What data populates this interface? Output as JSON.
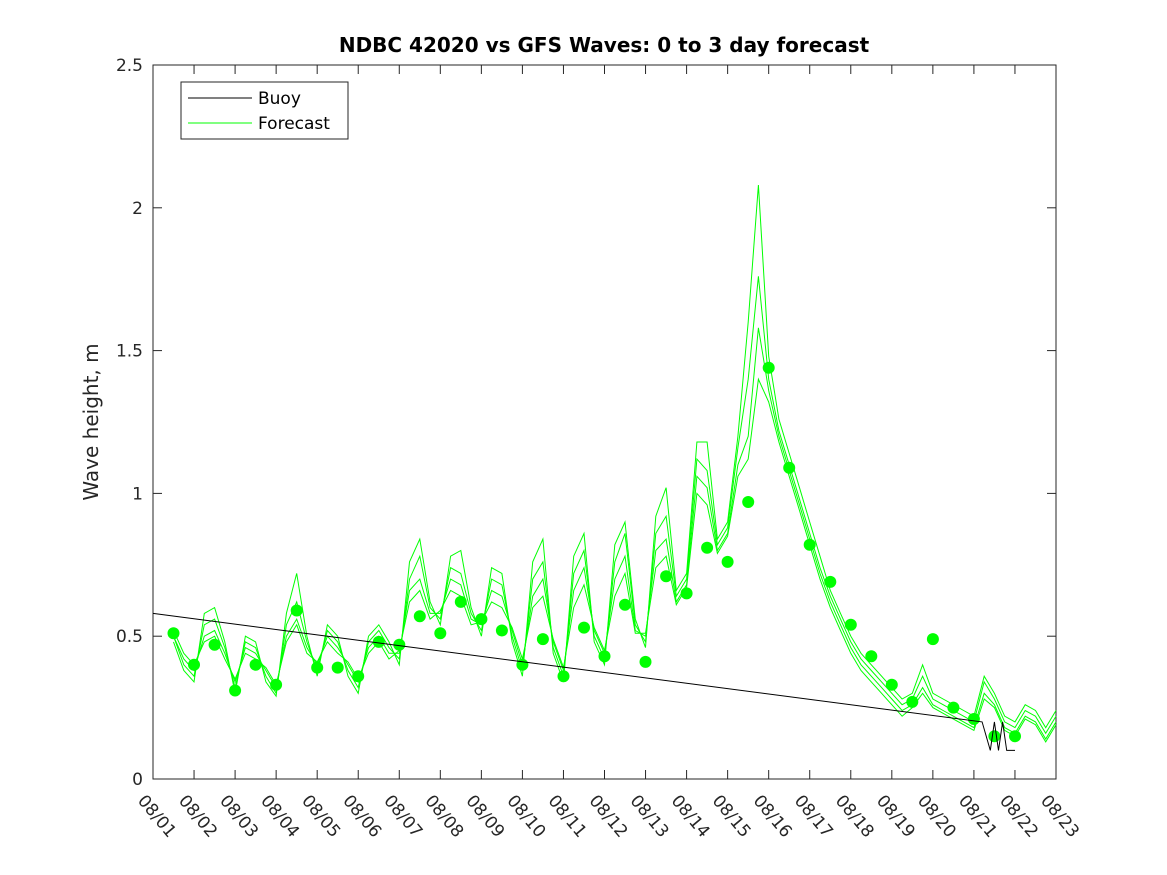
{
  "chart_data": {
    "type": "line",
    "title": "NDBC 42020 vs GFS Waves: 0 to 3 day forecast",
    "xlabel": "",
    "ylabel": "Wave height, m",
    "xlim": [
      0,
      22
    ],
    "ylim": [
      0,
      2.5
    ],
    "x_tick_labels": [
      "08/01",
      "08/02",
      "08/03",
      "08/04",
      "08/05",
      "08/06",
      "08/07",
      "08/08",
      "08/09",
      "08/10",
      "08/11",
      "08/12",
      "08/13",
      "08/14",
      "08/15",
      "08/16",
      "08/17",
      "08/18",
      "08/19",
      "08/20",
      "08/21",
      "08/22",
      "08/23"
    ],
    "y_ticks": [
      0,
      0.5,
      1,
      1.5,
      2,
      2.5
    ],
    "y_tick_labels": [
      "0",
      "0.5",
      "1",
      "1.5",
      "2",
      "2.5"
    ],
    "legend": {
      "position": "top-left",
      "entries": [
        {
          "label": "Buoy",
          "color": "#000000"
        },
        {
          "label": "Forecast",
          "color": "#00ff00"
        }
      ]
    },
    "colors": {
      "buoy": "#000000",
      "forecast": "#00ff00",
      "forecast_line": "#33dd33"
    },
    "series": [
      {
        "name": "Buoy",
        "x": [
          0,
          20.2,
          20.4,
          20.5,
          20.6,
          20.7,
          20.8,
          21.0
        ],
        "y": [
          0.58,
          0.2,
          0.1,
          0.2,
          0.1,
          0.2,
          0.1,
          0.1
        ]
      },
      {
        "name": "Forecast",
        "points": [
          [
            0.5,
            0.51
          ],
          [
            1.0,
            0.4
          ],
          [
            1.5,
            0.47
          ],
          [
            2.0,
            0.31
          ],
          [
            2.5,
            0.4
          ],
          [
            3.0,
            0.33
          ],
          [
            3.5,
            0.59
          ],
          [
            4.0,
            0.39
          ],
          [
            4.5,
            0.39
          ],
          [
            5.0,
            0.36
          ],
          [
            5.5,
            0.48
          ],
          [
            6.0,
            0.47
          ],
          [
            6.5,
            0.57
          ],
          [
            7.0,
            0.51
          ],
          [
            7.5,
            0.62
          ],
          [
            8.0,
            0.56
          ],
          [
            8.5,
            0.52
          ],
          [
            9.0,
            0.4
          ],
          [
            9.5,
            0.49
          ],
          [
            10.0,
            0.36
          ],
          [
            10.5,
            0.53
          ],
          [
            11.0,
            0.43
          ],
          [
            11.5,
            0.61
          ],
          [
            12.0,
            0.41
          ],
          [
            12.5,
            0.71
          ],
          [
            13.0,
            0.65
          ],
          [
            13.5,
            0.81
          ],
          [
            14.0,
            0.76
          ],
          [
            14.5,
            0.97
          ],
          [
            15.0,
            1.44
          ],
          [
            15.5,
            1.09
          ],
          [
            16.0,
            0.82
          ],
          [
            16.5,
            0.69
          ],
          [
            17.0,
            0.54
          ],
          [
            17.5,
            0.43
          ],
          [
            18.0,
            0.33
          ],
          [
            18.5,
            0.27
          ],
          [
            19.0,
            0.49
          ],
          [
            19.5,
            0.25
          ],
          [
            20.0,
            0.21
          ],
          [
            20.5,
            0.15
          ],
          [
            21.0,
            0.15
          ]
        ],
        "ensemble": [
          {
            "x": [
              0.5,
              0.75,
              1.0,
              1.25,
              1.5,
              1.75,
              2.0,
              2.25,
              2.5,
              2.75,
              3.0,
              3.25,
              3.5,
              3.75,
              4.0,
              4.25,
              4.5,
              4.75,
              5.0,
              5.25,
              5.5,
              5.75,
              6.0,
              6.25,
              6.5,
              6.75,
              7.0,
              7.25,
              7.5,
              7.75,
              8.0,
              8.25,
              8.5,
              8.75,
              9.0,
              9.25,
              9.5,
              9.75,
              10.0,
              10.25,
              10.5,
              10.75,
              11.0,
              11.25,
              11.5,
              11.75,
              12.0,
              12.25,
              12.5,
              12.75,
              13.0,
              13.25,
              13.5,
              13.75,
              14.0,
              14.25,
              14.5,
              14.75,
              15.0,
              15.25,
              15.5,
              15.75,
              16.0,
              16.25,
              16.5,
              16.75,
              17.0,
              17.25,
              17.5,
              17.75,
              18.0,
              18.25,
              18.5,
              18.75,
              19.0,
              19.25,
              19.5,
              19.75,
              20.0,
              20.25,
              20.5,
              20.75,
              21.0,
              21.25,
              21.5,
              21.75,
              22.0
            ],
            "y": [
              0.5,
              0.42,
              0.38,
              0.5,
              0.52,
              0.44,
              0.34,
              0.46,
              0.44,
              0.38,
              0.32,
              0.5,
              0.56,
              0.46,
              0.4,
              0.5,
              0.46,
              0.4,
              0.34,
              0.46,
              0.5,
              0.44,
              0.44,
              0.66,
              0.7,
              0.58,
              0.58,
              0.7,
              0.68,
              0.56,
              0.54,
              0.66,
              0.64,
              0.52,
              0.4,
              0.64,
              0.7,
              0.48,
              0.38,
              0.66,
              0.74,
              0.52,
              0.44,
              0.7,
              0.78,
              0.52,
              0.5,
              0.8,
              0.84,
              0.62,
              0.68,
              1.06,
              1.02,
              0.8,
              0.86,
              1.1,
              1.2,
              1.58,
              1.36,
              1.2,
              1.08,
              0.96,
              0.84,
              0.72,
              0.62,
              0.54,
              0.46,
              0.4,
              0.36,
              0.32,
              0.28,
              0.24,
              0.26,
              0.32,
              0.26,
              0.24,
              0.22,
              0.2,
              0.18,
              0.3,
              0.26,
              0.18,
              0.16,
              0.22,
              0.2,
              0.14,
              0.2
            ]
          },
          {
            "x": [
              0.5,
              0.75,
              1.0,
              1.25,
              1.5,
              1.75,
              2.0,
              2.25,
              2.5,
              2.75,
              3.0,
              3.25,
              3.5,
              3.75,
              4.0,
              4.25,
              4.5,
              4.75,
              5.0,
              5.25,
              5.5,
              5.75,
              6.0,
              6.25,
              6.5,
              6.75,
              7.0,
              7.25,
              7.5,
              7.75,
              8.0,
              8.25,
              8.5,
              8.75,
              9.0,
              9.25,
              9.5,
              9.75,
              10.0,
              10.25,
              10.5,
              10.75,
              11.0,
              11.25,
              11.5,
              11.75,
              12.0,
              12.25,
              12.5,
              12.75,
              13.0,
              13.25,
              13.5,
              13.75,
              14.0,
              14.25,
              14.5,
              14.75,
              15.0,
              15.25,
              15.5,
              15.75,
              16.0,
              16.25,
              16.5,
              16.75,
              17.0,
              17.25,
              17.5,
              17.75,
              18.0,
              18.25,
              18.5,
              18.75,
              19.0,
              19.25,
              19.5,
              19.75,
              20.0,
              20.25,
              20.5,
              20.75,
              21.0,
              21.25,
              21.5,
              21.75,
              22.0
            ],
            "y": [
              0.5,
              0.4,
              0.36,
              0.54,
              0.56,
              0.46,
              0.32,
              0.48,
              0.46,
              0.36,
              0.3,
              0.54,
              0.62,
              0.48,
              0.38,
              0.52,
              0.48,
              0.38,
              0.32,
              0.48,
              0.52,
              0.46,
              0.42,
              0.7,
              0.78,
              0.6,
              0.56,
              0.74,
              0.72,
              0.58,
              0.52,
              0.7,
              0.68,
              0.5,
              0.38,
              0.7,
              0.76,
              0.46,
              0.36,
              0.72,
              0.8,
              0.5,
              0.42,
              0.76,
              0.86,
              0.54,
              0.48,
              0.86,
              0.92,
              0.64,
              0.7,
              1.12,
              1.08,
              0.82,
              0.88,
              1.16,
              1.4,
              1.76,
              1.4,
              1.22,
              1.1,
              0.98,
              0.86,
              0.74,
              0.64,
              0.56,
              0.48,
              0.42,
              0.38,
              0.34,
              0.3,
              0.26,
              0.28,
              0.36,
              0.28,
              0.26,
              0.24,
              0.22,
              0.2,
              0.34,
              0.28,
              0.2,
              0.18,
              0.24,
              0.22,
              0.16,
              0.22
            ]
          },
          {
            "x": [
              0.5,
              0.75,
              1.0,
              1.25,
              1.5,
              1.75,
              2.0,
              2.25,
              2.5,
              2.75,
              3.0,
              3.25,
              3.5,
              3.75,
              4.0,
              4.25,
              4.5,
              4.75,
              5.0,
              5.25,
              5.5,
              5.75,
              6.0,
              6.25,
              6.5,
              6.75,
              7.0,
              7.25,
              7.5,
              7.75,
              8.0,
              8.25,
              8.5,
              8.75,
              9.0,
              9.25,
              9.5,
              9.75,
              10.0,
              10.25,
              10.5,
              10.75,
              11.0,
              11.25,
              11.5,
              11.75,
              12.0,
              12.25,
              12.5,
              12.75,
              13.0,
              13.25,
              13.5,
              13.75,
              14.0,
              14.25,
              14.5,
              14.75,
              15.0,
              15.25,
              15.5,
              15.75,
              16.0,
              16.25,
              16.5,
              16.75,
              17.0,
              17.25,
              17.5,
              17.75,
              18.0,
              18.25,
              18.5,
              18.75,
              19.0,
              19.25,
              19.5,
              19.75,
              20.0,
              20.25,
              20.5,
              20.75,
              21.0,
              21.25,
              21.5,
              21.75,
              22.0
            ],
            "y": [
              0.48,
              0.38,
              0.34,
              0.58,
              0.6,
              0.48,
              0.3,
              0.5,
              0.48,
              0.34,
              0.29,
              0.58,
              0.72,
              0.5,
              0.36,
              0.54,
              0.5,
              0.36,
              0.3,
              0.5,
              0.54,
              0.48,
              0.4,
              0.76,
              0.84,
              0.62,
              0.54,
              0.78,
              0.8,
              0.6,
              0.5,
              0.74,
              0.72,
              0.48,
              0.36,
              0.76,
              0.84,
              0.44,
              0.34,
              0.78,
              0.86,
              0.48,
              0.4,
              0.82,
              0.9,
              0.56,
              0.46,
              0.92,
              1.02,
              0.66,
              0.72,
              1.18,
              1.18,
              0.84,
              0.9,
              1.2,
              1.6,
              2.08,
              1.48,
              1.26,
              1.14,
              1.02,
              0.9,
              0.78,
              0.66,
              0.58,
              0.5,
              0.44,
              0.4,
              0.36,
              0.32,
              0.28,
              0.3,
              0.4,
              0.3,
              0.28,
              0.26,
              0.24,
              0.22,
              0.36,
              0.3,
              0.22,
              0.2,
              0.26,
              0.24,
              0.18,
              0.24
            ]
          },
          {
            "x": [
              0.5,
              0.75,
              1.0,
              1.25,
              1.5,
              1.75,
              2.0,
              2.25,
              2.5,
              2.75,
              3.0,
              3.25,
              3.5,
              3.75,
              4.0,
              4.25,
              4.5,
              4.75,
              5.0,
              5.25,
              5.5,
              5.75,
              6.0,
              6.25,
              6.5,
              6.75,
              7.0,
              7.25,
              7.5,
              7.75,
              8.0,
              8.25,
              8.5,
              8.75,
              9.0,
              9.25,
              9.5,
              9.75,
              10.0,
              10.25,
              10.5,
              10.75,
              11.0,
              11.25,
              11.5,
              11.75,
              12.0,
              12.25,
              12.5,
              12.75,
              13.0,
              13.25,
              13.5,
              13.75,
              14.0,
              14.25,
              14.5,
              14.75,
              15.0,
              15.25,
              15.5,
              15.75,
              16.0,
              16.25,
              16.5,
              16.75,
              17.0,
              17.25,
              17.5,
              17.75,
              18.0,
              18.25,
              18.5,
              18.75,
              19.0,
              19.25,
              19.5,
              19.75,
              20.0,
              20.25,
              20.5,
              20.75,
              21.0,
              21.25,
              21.5,
              21.75,
              22.0
            ],
            "y": [
              0.52,
              0.44,
              0.4,
              0.48,
              0.5,
              0.42,
              0.35,
              0.44,
              0.42,
              0.39,
              0.33,
              0.48,
              0.54,
              0.44,
              0.41,
              0.48,
              0.44,
              0.41,
              0.35,
              0.44,
              0.48,
              0.42,
              0.45,
              0.62,
              0.66,
              0.56,
              0.59,
              0.66,
              0.64,
              0.54,
              0.55,
              0.62,
              0.6,
              0.53,
              0.42,
              0.6,
              0.64,
              0.49,
              0.39,
              0.6,
              0.68,
              0.53,
              0.45,
              0.64,
              0.72,
              0.51,
              0.51,
              0.74,
              0.78,
              0.61,
              0.67,
              1.0,
              0.96,
              0.79,
              0.85,
              1.06,
              1.12,
              1.4,
              1.32,
              1.18,
              1.06,
              0.94,
              0.82,
              0.7,
              0.6,
              0.52,
              0.44,
              0.38,
              0.34,
              0.3,
              0.26,
              0.22,
              0.25,
              0.3,
              0.25,
              0.23,
              0.21,
              0.19,
              0.17,
              0.28,
              0.25,
              0.17,
              0.15,
              0.21,
              0.19,
              0.13,
              0.19
            ]
          }
        ]
      }
    ]
  }
}
